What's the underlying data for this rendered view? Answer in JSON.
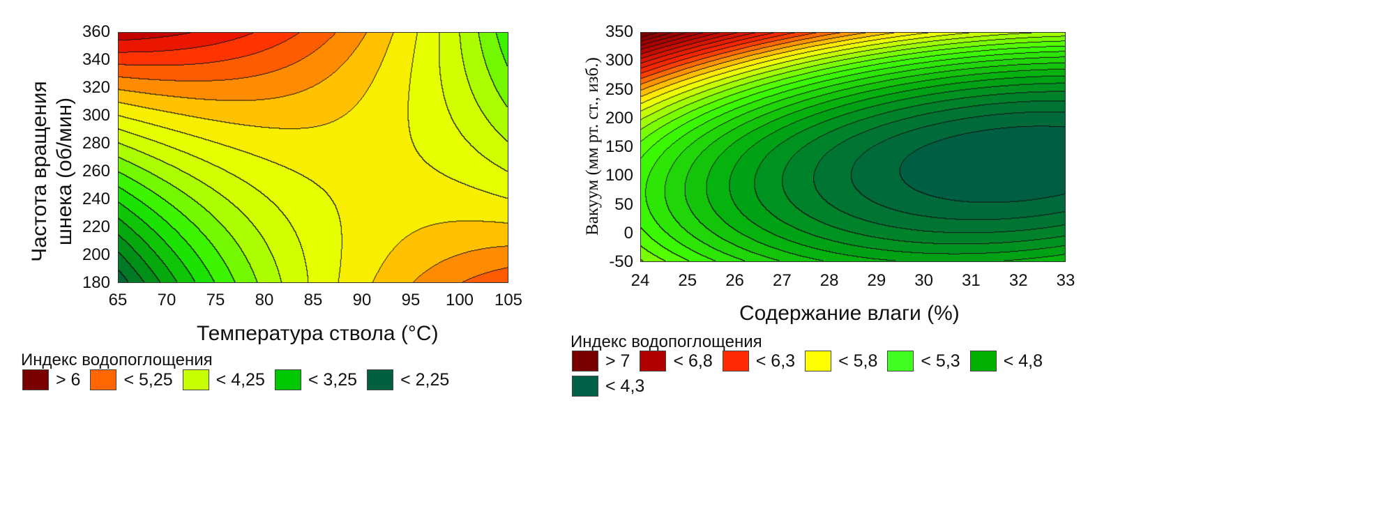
{
  "chart_data": [
    {
      "type": "contour",
      "xlabel": "Температура ствола (°C)",
      "ylabel_lines": [
        "Частота вращения",
        "шнека (об/мин)"
      ],
      "xlim": [
        65,
        105
      ],
      "ylim": [
        180,
        360
      ],
      "xticks": [
        "65",
        "70",
        "75",
        "80",
        "85",
        "90",
        "95",
        "100",
        "105"
      ],
      "yticks": [
        "360",
        "340",
        "320",
        "300",
        "280",
        "260",
        "240",
        "220",
        "200",
        "180"
      ],
      "surface_model": {
        "form": "a + b*u + c*v + d*u*v + e*u^2 + g*v^2, u=(x-85)/20, v=(y-270)/90",
        "a": 4.85,
        "b": 0.19,
        "c": 0.56,
        "d": -1.69,
        "e": -0.66,
        "g": 0.25
      },
      "contour_step": 0.25,
      "color_stops": [
        [
          2.0,
          "#005a3c"
        ],
        [
          2.75,
          "#009a10"
        ],
        [
          3.5,
          "#20f000"
        ],
        [
          4.25,
          "#c8ff00"
        ],
        [
          4.75,
          "#f0ff00"
        ],
        [
          5.0,
          "#ffdd00"
        ],
        [
          5.25,
          "#ffa500"
        ],
        [
          5.6,
          "#ff6000"
        ],
        [
          6.0,
          "#ff2000"
        ],
        [
          6.4,
          "#c00000"
        ],
        [
          6.8,
          "#7a0000"
        ]
      ],
      "legend": {
        "title": "Индекс водопоглощения",
        "items": [
          {
            "label": "> 6",
            "color": "#7a0000"
          },
          {
            "label": "< 5,25",
            "color": "#ff6600"
          },
          {
            "label": "< 4,25",
            "color": "#c8ff00"
          },
          {
            "label": "< 3,25",
            "color": "#00c800"
          },
          {
            "label": "< 2,25",
            "color": "#006040"
          }
        ]
      }
    },
    {
      "type": "contour",
      "xlabel": "Содержание влаги (%)",
      "ylabel": "Вакуум (мм рт. ст., изб.)",
      "xlim": [
        24,
        33
      ],
      "ylim": [
        -50,
        350
      ],
      "xticks": [
        "24",
        "25",
        "26",
        "27",
        "28",
        "29",
        "30",
        "31",
        "32",
        "33"
      ],
      "yticks": [
        "350",
        "300",
        "250",
        "200",
        "150",
        "100",
        "50",
        "0",
        "-50"
      ],
      "surface_model": {
        "form": "4.2 + 0.017*u^2 + k*w^2 - 0.028*u*w, u=x-32, w=(y-125)/100, k=0.28 (w>0) / 0.2 (w<0)"
      },
      "contour_step": 0.1,
      "color_stops": [
        [
          4.2,
          "#005a45"
        ],
        [
          4.5,
          "#007a30"
        ],
        [
          4.8,
          "#00aa10"
        ],
        [
          5.3,
          "#40ff00"
        ],
        [
          5.8,
          "#ffff00"
        ],
        [
          6.3,
          "#ff2a00"
        ],
        [
          6.8,
          "#b00000"
        ],
        [
          7.2,
          "#7a0000"
        ]
      ],
      "legend": {
        "title": "Индекс водопоглощения",
        "items": [
          {
            "label": "> 7",
            "color": "#7a0000"
          },
          {
            "label": "< 6,8",
            "color": "#b00000"
          },
          {
            "label": "< 6,3",
            "color": "#ff2a00"
          },
          {
            "label": "< 5,8",
            "color": "#ffff00"
          },
          {
            "label": "< 5,3",
            "color": "#40ff20"
          },
          {
            "label": "< 4,8",
            "color": "#00b000"
          },
          {
            "label": "< 4,3",
            "color": "#006048"
          }
        ]
      }
    }
  ]
}
